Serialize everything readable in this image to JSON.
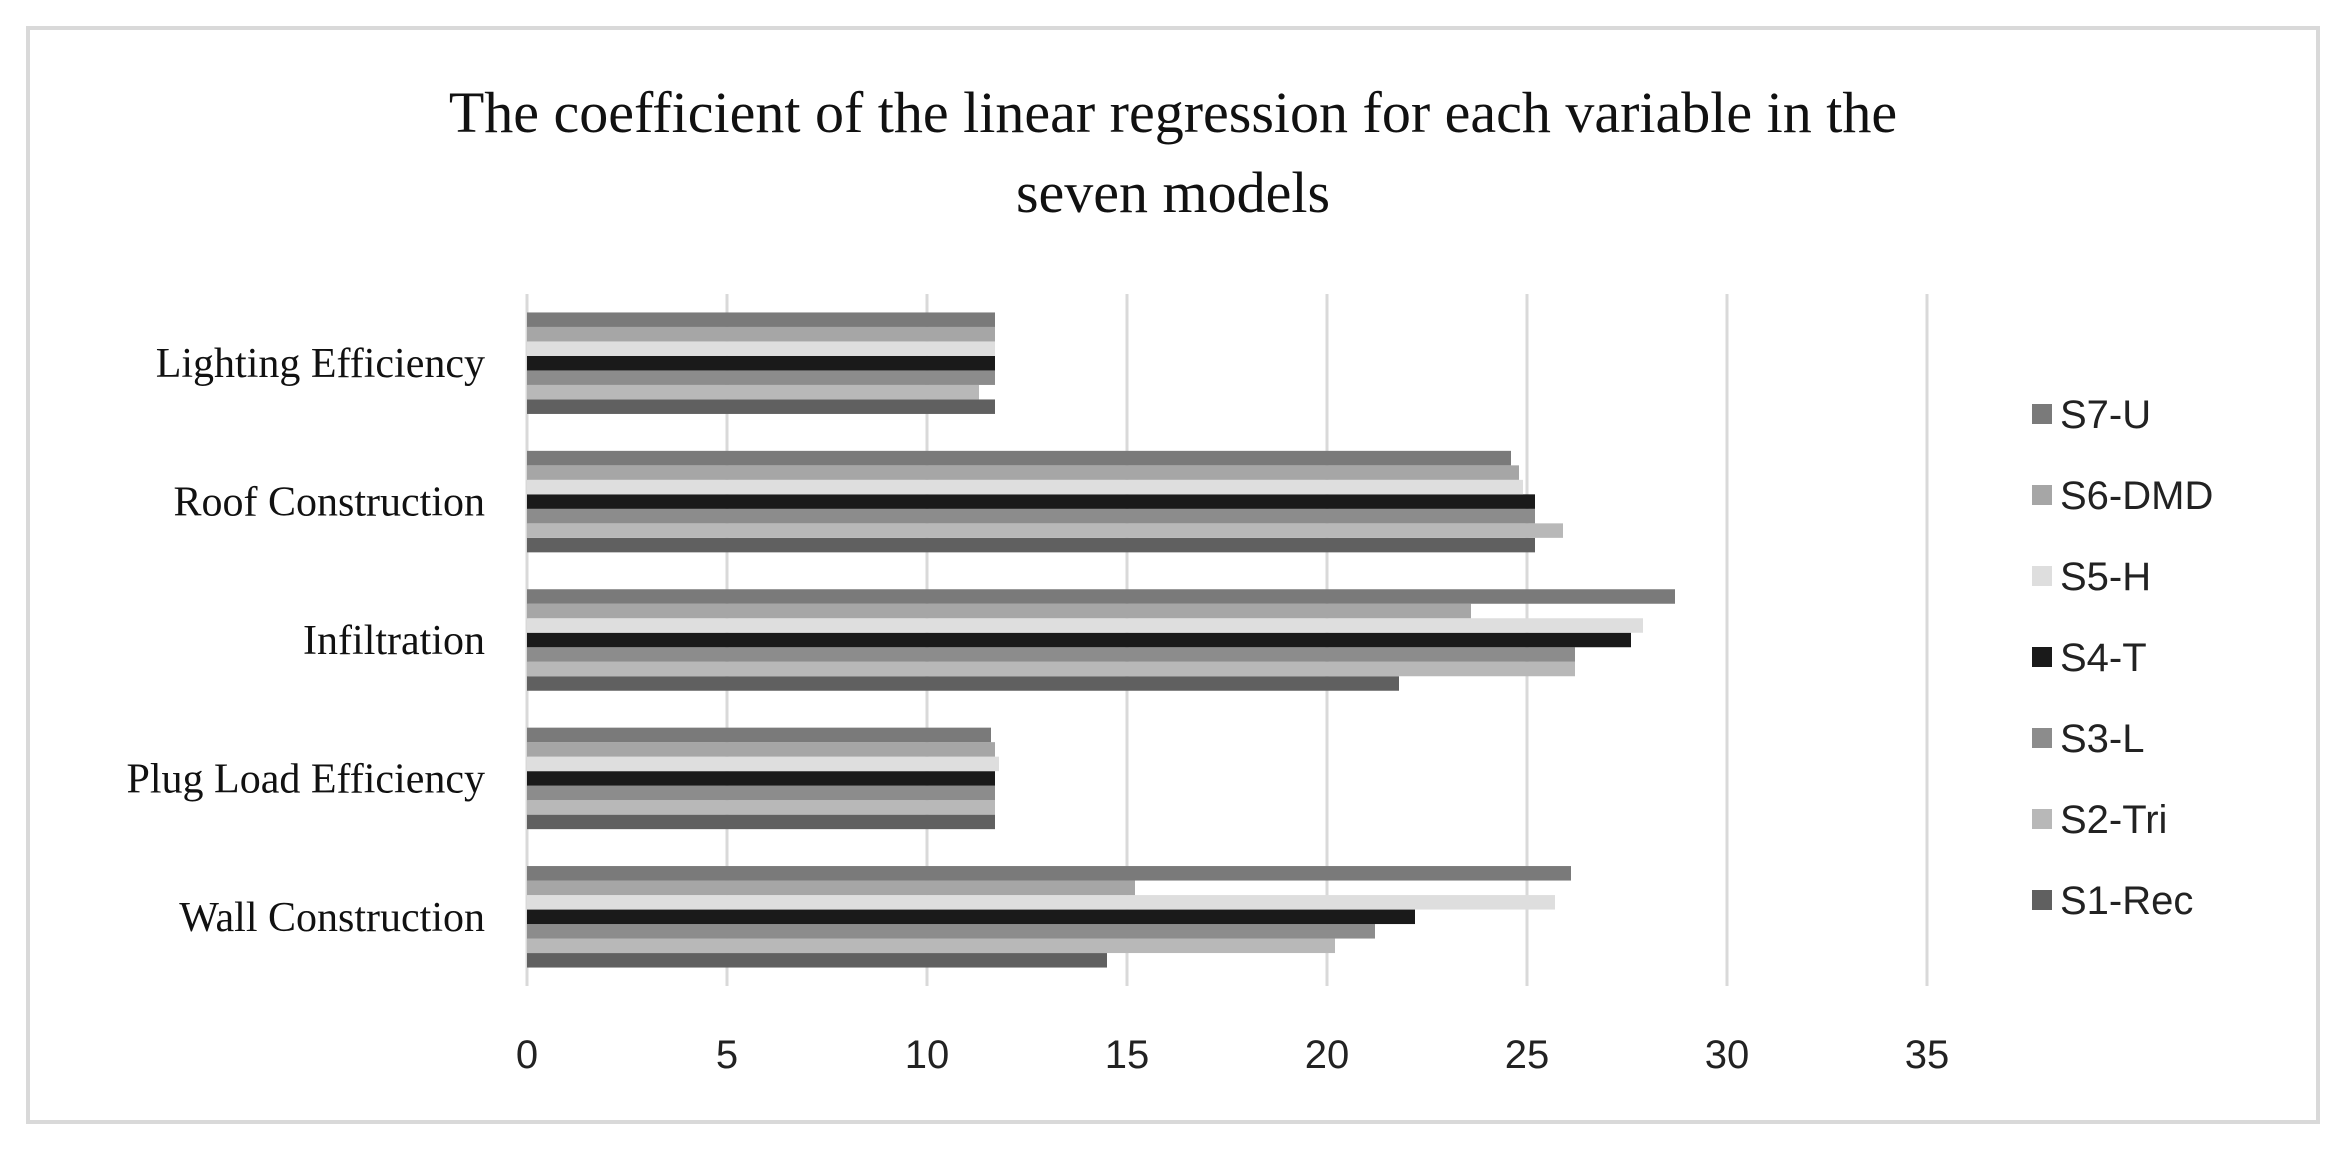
{
  "chart_data": {
    "type": "bar",
    "orientation": "horizontal",
    "title_lines": [
      "The coefficient of the linear regression for each variable in the",
      "seven models"
    ],
    "categories": [
      "Wall Construction",
      "Plug Load Efficiency",
      "Infiltration",
      "Roof Construction",
      "Lighting Efficiency"
    ],
    "series": [
      {
        "name": "S1-Rec",
        "color": "#606060",
        "values": [
          14.5,
          11.7,
          21.8,
          25.2,
          11.7
        ]
      },
      {
        "name": "S2-Tri",
        "color": "#b8b8b8",
        "values": [
          20.2,
          11.7,
          26.2,
          25.9,
          11.3
        ]
      },
      {
        "name": "S3-L",
        "color": "#8c8c8c",
        "values": [
          21.2,
          11.7,
          26.2,
          25.2,
          11.7
        ]
      },
      {
        "name": "S4-T",
        "color": "#1a1a1a",
        "values": [
          22.2,
          11.7,
          27.6,
          25.2,
          11.7
        ]
      },
      {
        "name": "S5-H",
        "color": "#dedede",
        "values": [
          25.7,
          11.8,
          27.9,
          24.9,
          11.7
        ]
      },
      {
        "name": "S6-DMD",
        "color": "#a6a6a6",
        "values": [
          15.2,
          11.7,
          23.6,
          24.8,
          11.7
        ]
      },
      {
        "name": "S7-U",
        "color": "#7a7a7a",
        "values": [
          26.1,
          11.6,
          28.7,
          24.6,
          11.7
        ]
      }
    ],
    "xlim": [
      0,
      35
    ],
    "xticks": [
      0,
      5,
      10,
      15,
      20,
      25,
      30,
      35
    ],
    "xtick_labels": [
      "0",
      "5",
      "10",
      "15",
      "20",
      "25",
      "30",
      "35"
    ],
    "grid": "vertical",
    "legend_position": "right",
    "legend_order": [
      "S7-U",
      "S6-DMD",
      "S5-H",
      "S4-T",
      "S3-L",
      "S2-Tri",
      "S1-Rec"
    ]
  }
}
